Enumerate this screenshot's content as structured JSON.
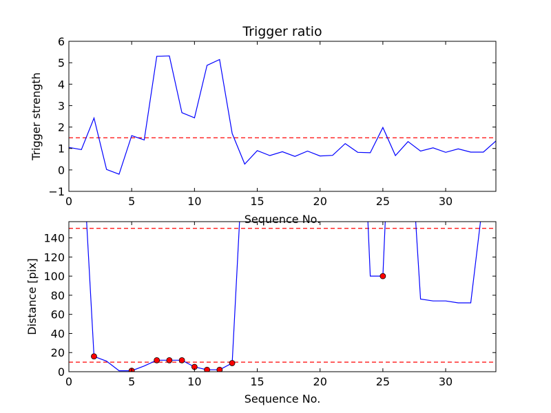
{
  "chart_data": [
    {
      "type": "line",
      "title": "Trigger ratio",
      "xlabel": "Sequence No.",
      "ylabel": "Trigger strength",
      "xlim": [
        0,
        34
      ],
      "ylim": [
        -1,
        6
      ],
      "x_ticks": [
        0,
        5,
        10,
        15,
        20,
        25,
        30
      ],
      "y_ticks": [
        -1,
        0,
        1,
        2,
        3,
        4,
        5,
        6
      ],
      "grid": false,
      "series": [
        {
          "color": "#0000ff",
          "x": [
            0,
            1,
            2,
            3,
            4,
            5,
            6,
            7,
            8,
            9,
            10,
            11,
            12,
            13,
            14,
            15,
            16,
            17,
            18,
            19,
            20,
            21,
            22,
            23,
            24,
            25,
            26,
            27,
            28,
            29,
            30,
            31,
            32,
            33,
            34
          ],
          "values": [
            1.05,
            0.95,
            2.42,
            0.02,
            -0.2,
            1.6,
            1.4,
            5.3,
            5.32,
            2.67,
            2.43,
            4.88,
            5.15,
            1.7,
            0.27,
            0.9,
            0.67,
            0.85,
            0.63,
            0.88,
            0.65,
            0.68,
            1.23,
            0.82,
            0.8,
            1.98,
            0.67,
            1.32,
            0.88,
            1.03,
            0.82,
            0.98,
            0.83,
            0.83,
            1.35
          ]
        }
      ],
      "threshold_lines": [
        {
          "y": 1.5,
          "color": "#ff0000",
          "style": "dashed"
        }
      ]
    },
    {
      "type": "line",
      "title": "",
      "xlabel": "Sequence No.",
      "ylabel": "Distance [pix]",
      "xlim": [
        0,
        34
      ],
      "ylim": [
        0,
        157
      ],
      "x_ticks": [
        0,
        5,
        10,
        15,
        20,
        25,
        30
      ],
      "y_ticks": [
        0,
        20,
        40,
        60,
        80,
        100,
        120,
        140
      ],
      "grid": false,
      "line_segments": [
        {
          "color": "#0000ff",
          "x": [
            1.4,
            2,
            3,
            4,
            5,
            6,
            7,
            8,
            9,
            10,
            11,
            12,
            13,
            13.6
          ],
          "values": [
            160,
            16,
            11,
            1,
            1,
            6,
            12,
            12,
            12,
            5,
            2,
            2,
            9,
            160
          ]
        },
        {
          "color": "#0000ff",
          "x": [
            23.8,
            24,
            25,
            25.2
          ],
          "values": [
            160,
            100,
            100,
            160
          ]
        },
        {
          "color": "#0000ff",
          "x": [
            27.6,
            28,
            29,
            30,
            31,
            32,
            32.8
          ],
          "values": [
            160,
            76,
            74,
            74,
            72,
            72,
            160
          ]
        }
      ],
      "highlighted_points": {
        "color": "#ff0000",
        "x": [
          2,
          5,
          7,
          8,
          9,
          10,
          11,
          12,
          13,
          25
        ],
        "values": [
          16,
          1,
          12,
          12,
          12,
          5,
          2,
          2,
          9,
          100
        ]
      },
      "threshold_lines": [
        {
          "y": 150,
          "color": "#ff0000",
          "style": "dashed"
        },
        {
          "y": 10,
          "color": "#ff0000",
          "style": "dashed"
        }
      ]
    }
  ]
}
